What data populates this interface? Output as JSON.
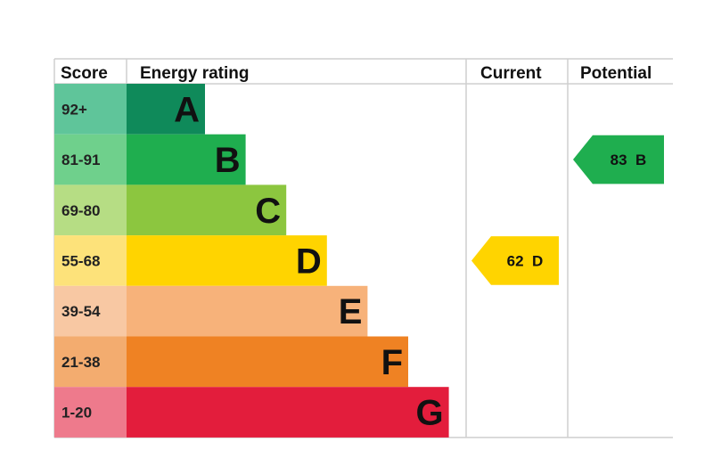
{
  "headers": {
    "score": "Score",
    "energy_rating": "Energy rating",
    "current": "Current",
    "potential": "Potential"
  },
  "chart_data": {
    "type": "bar",
    "title": "",
    "bands": [
      {
        "letter": "A",
        "range": "92+",
        "bar_color": "#0f8a5a",
        "score_bg": "#5fc59a"
      },
      {
        "letter": "B",
        "range": "81-91",
        "bar_color": "#1fae4f",
        "score_bg": "#6fd08c"
      },
      {
        "letter": "C",
        "range": "69-80",
        "bar_color": "#8cc63f",
        "score_bg": "#b6dd84"
      },
      {
        "letter": "D",
        "range": "55-68",
        "bar_color": "#ffd400",
        "score_bg": "#fde27a"
      },
      {
        "letter": "E",
        "range": "39-54",
        "bar_color": "#f7b27a",
        "score_bg": "#f8c8a3"
      },
      {
        "letter": "F",
        "range": "21-38",
        "bar_color": "#ef8223",
        "score_bg": "#f3ac6f"
      },
      {
        "letter": "G",
        "range": "1-20",
        "bar_color": "#e31d3c",
        "score_bg": "#ee7a8c"
      }
    ],
    "current": {
      "value": 62,
      "band": "D",
      "color": "#ffd400",
      "label": "62  D"
    },
    "potential": {
      "value": 83,
      "band": "B",
      "color": "#1fae4f",
      "label": "83  B"
    }
  }
}
